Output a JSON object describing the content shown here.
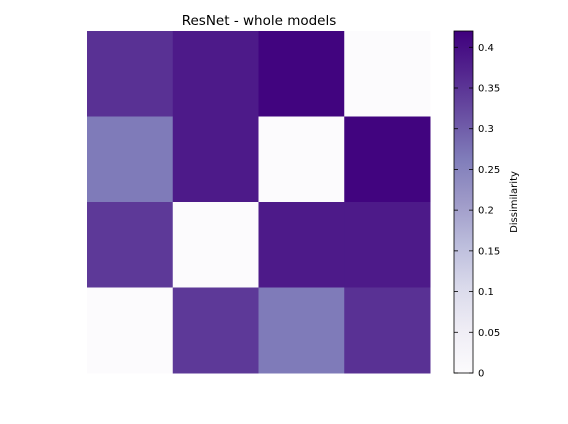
{
  "chart_data": {
    "type": "heatmap",
    "title": "ResNet - whole models",
    "rows": 4,
    "cols": 4,
    "values": [
      [
        0.355,
        0.385,
        0.415,
        0.0
      ],
      [
        0.265,
        0.385,
        0.0,
        0.415
      ],
      [
        0.345,
        0.0,
        0.385,
        0.385
      ],
      [
        0.0,
        0.345,
        0.265,
        0.355
      ]
    ],
    "xlabel": "",
    "ylabel": "",
    "colorbar": {
      "label": "Dissimilarity",
      "range": [
        0,
        0.42
      ],
      "ticks": [
        0,
        0.05,
        0.1,
        0.15,
        0.2,
        0.25,
        0.3,
        0.35,
        0.4
      ],
      "tick_labels": [
        "0",
        "0.05",
        "0.1",
        "0.15",
        "0.2",
        "0.25",
        "0.3",
        "0.35",
        "0.4"
      ],
      "colormap": "Purples",
      "color_low": "#fcfbfd",
      "color_high": "#3f007d"
    },
    "grid": false
  }
}
